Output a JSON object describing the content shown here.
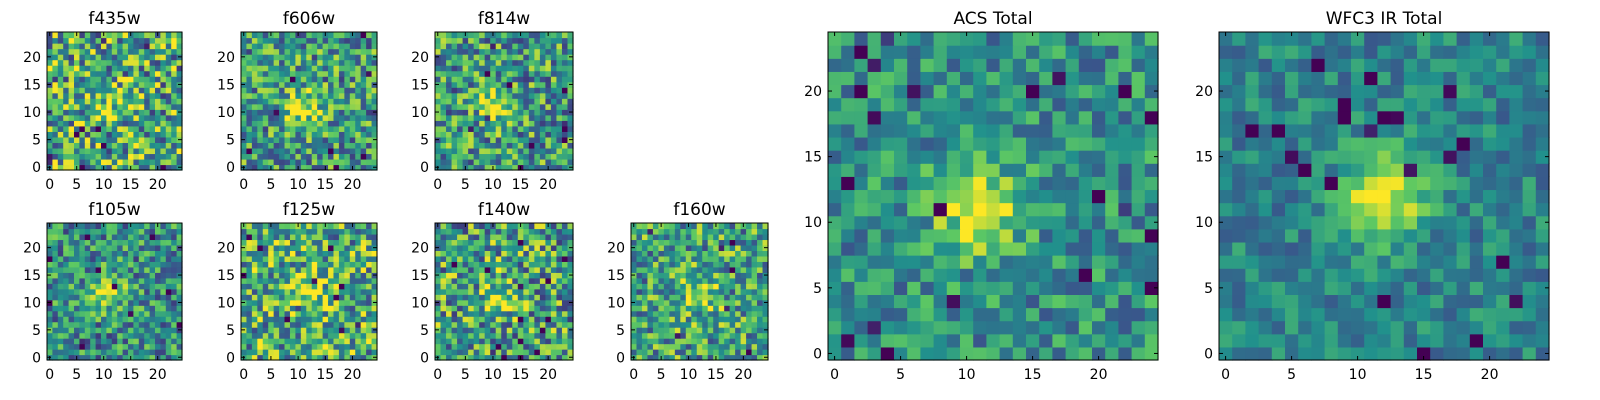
{
  "chart_data": [
    {
      "type": "heatmap",
      "title": "f435w",
      "grid_size": 25,
      "peak": [
        11,
        11
      ],
      "seed": 101,
      "brightness": 0.62,
      "noise": 0.55,
      "blob_amplitude": 0.25,
      "xticks": [
        0,
        5,
        10,
        15,
        20
      ],
      "yticks": [
        0,
        5,
        10,
        15,
        20
      ],
      "xlim": [
        0,
        24
      ],
      "ylim": [
        0,
        24
      ]
    },
    {
      "type": "heatmap",
      "title": "f606w",
      "grid_size": 25,
      "peak": [
        11,
        11
      ],
      "seed": 202,
      "brightness": 0.55,
      "noise": 0.45,
      "blob_amplitude": 0.4,
      "xticks": [
        0,
        5,
        10,
        15,
        20
      ],
      "yticks": [
        0,
        5,
        10,
        15,
        20
      ],
      "xlim": [
        0,
        24
      ],
      "ylim": [
        0,
        24
      ]
    },
    {
      "type": "heatmap",
      "title": "f814w",
      "grid_size": 25,
      "peak": [
        11,
        11
      ],
      "seed": 303,
      "brightness": 0.55,
      "noise": 0.45,
      "blob_amplitude": 0.35,
      "xticks": [
        0,
        5,
        10,
        15,
        20
      ],
      "yticks": [
        0,
        5,
        10,
        15,
        20
      ],
      "xlim": [
        0,
        24
      ],
      "ylim": [
        0,
        24
      ]
    },
    {
      "type": "heatmap",
      "title": "f105w",
      "grid_size": 25,
      "peak": [
        11,
        12
      ],
      "seed": 404,
      "brightness": 0.5,
      "noise": 0.4,
      "blob_amplitude": 0.4,
      "xticks": [
        0,
        5,
        10,
        15,
        20
      ],
      "yticks": [
        0,
        5,
        10,
        15,
        20
      ],
      "xlim": [
        0,
        24
      ],
      "ylim": [
        0,
        24
      ]
    },
    {
      "type": "heatmap",
      "title": "f125w",
      "grid_size": 25,
      "peak": [
        11,
        12
      ],
      "seed": 505,
      "brightness": 0.62,
      "noise": 0.5,
      "blob_amplitude": 0.3,
      "xticks": [
        0,
        5,
        10,
        15,
        20
      ],
      "yticks": [
        0,
        5,
        10,
        15,
        20
      ],
      "xlim": [
        0,
        24
      ],
      "ylim": [
        0,
        24
      ]
    },
    {
      "type": "heatmap",
      "title": "f140w",
      "grid_size": 25,
      "peak": [
        11,
        11
      ],
      "seed": 606,
      "brightness": 0.58,
      "noise": 0.5,
      "blob_amplitude": 0.3,
      "xticks": [
        0,
        5,
        10,
        15,
        20
      ],
      "yticks": [
        0,
        5,
        10,
        15,
        20
      ],
      "xlim": [
        0,
        24
      ],
      "ylim": [
        0,
        24
      ]
    },
    {
      "type": "heatmap",
      "title": "f160w",
      "grid_size": 25,
      "peak": [
        12,
        11
      ],
      "seed": 707,
      "brightness": 0.58,
      "noise": 0.45,
      "blob_amplitude": 0.35,
      "xticks": [
        0,
        5,
        10,
        15,
        20
      ],
      "yticks": [
        0,
        5,
        10,
        15,
        20
      ],
      "xlim": [
        0,
        24
      ],
      "ylim": [
        0,
        24
      ]
    },
    {
      "type": "heatmap",
      "title": "ACS Total",
      "grid_size": 25,
      "peak": [
        11,
        11
      ],
      "seed": 808,
      "brightness": 0.5,
      "noise": 0.3,
      "blob_amplitude": 0.5,
      "xticks": [
        0,
        5,
        10,
        15,
        20
      ],
      "yticks": [
        0,
        5,
        10,
        15,
        20
      ],
      "xlim": [
        0,
        24
      ],
      "ylim": [
        0,
        24
      ]
    },
    {
      "type": "heatmap",
      "title": "WFC3 IR Total",
      "grid_size": 25,
      "peak": [
        12,
        12
      ],
      "seed": 909,
      "brightness": 0.45,
      "noise": 0.22,
      "blob_amplitude": 0.55,
      "xticks": [
        0,
        5,
        10,
        15,
        20
      ],
      "yticks": [
        0,
        5,
        10,
        15,
        20
      ],
      "xlim": [
        0,
        24
      ],
      "ylim": [
        0,
        24
      ]
    }
  ],
  "colors": {
    "colormap": [
      "#440154",
      "#3b528b",
      "#21918c",
      "#5ec962",
      "#fde725"
    ],
    "frame": "#000000",
    "text": "#000000",
    "background": "#ffffff"
  }
}
